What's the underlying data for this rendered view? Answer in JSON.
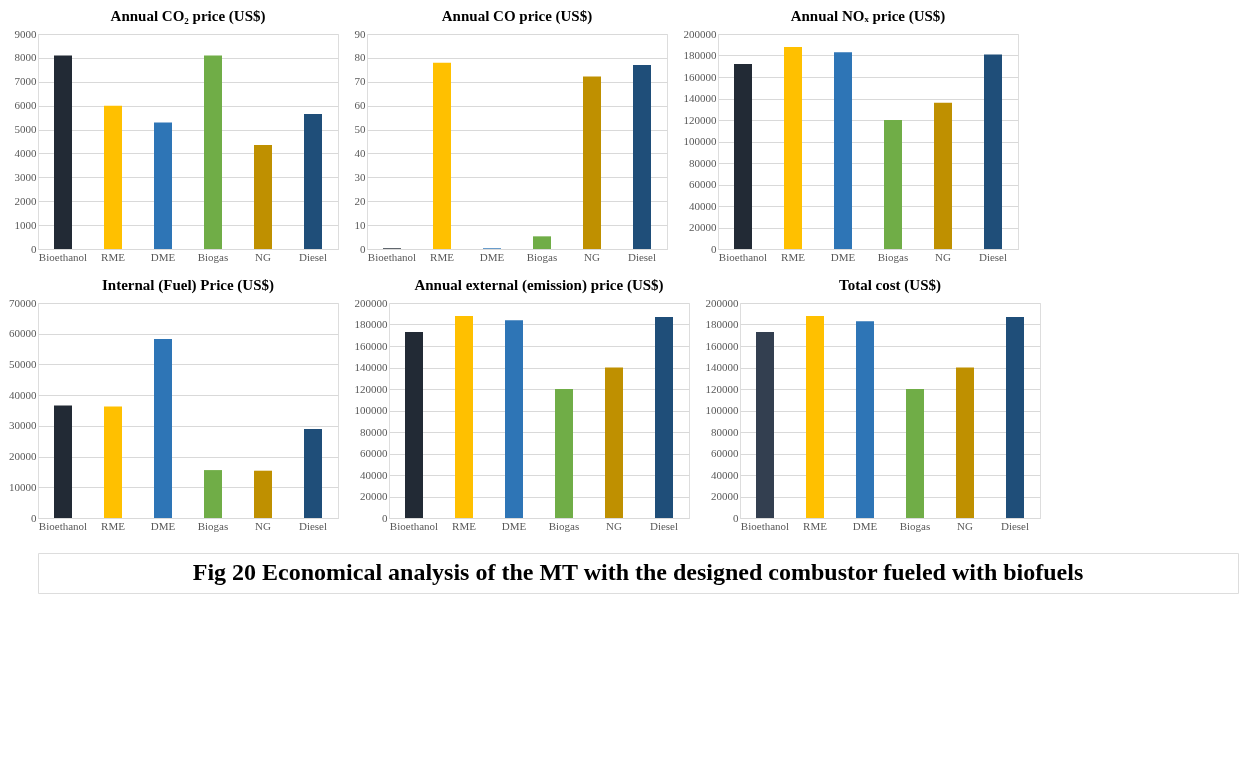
{
  "chart_data": [
    {
      "type": "bar",
      "title": "Annual CO₂ price (US$)",
      "categories": [
        "Bioethanol",
        "RME",
        "DME",
        "Biogas",
        "NG",
        "Diesel"
      ],
      "values": [
        8100,
        6000,
        5300,
        8100,
        4350,
        5650
      ],
      "colors": [
        "#222a35",
        "#ffc000",
        "#2e75b6",
        "#70ad47",
        "#bf9000",
        "#1f4e79"
      ],
      "ylim": [
        0,
        9000
      ],
      "yticks": [
        0,
        1000,
        2000,
        3000,
        4000,
        5000,
        6000,
        7000,
        8000,
        9000
      ],
      "grid": "y",
      "legend": false
    },
    {
      "type": "bar",
      "title": "Annual CO price (US$)",
      "categories": [
        "Bioethanol",
        "RME",
        "DME",
        "Biogas",
        "NG",
        "Diesel"
      ],
      "values": [
        0.3,
        78,
        0.3,
        5.3,
        72.2,
        77
      ],
      "colors": [
        "#222a35",
        "#ffc000",
        "#2e75b6",
        "#70ad47",
        "#bf9000",
        "#1f4e79"
      ],
      "ylim": [
        0,
        90
      ],
      "yticks": [
        0,
        10,
        20,
        30,
        40,
        50,
        60,
        70,
        80,
        90
      ],
      "grid": "y",
      "legend": false
    },
    {
      "type": "bar",
      "title": "Annual  NOₓ  price (US$)",
      "categories": [
        "Bioethanol",
        "RME",
        "DME",
        "Biogas",
        "NG",
        "Diesel"
      ],
      "values": [
        172000,
        188000,
        183000,
        120000,
        136000,
        181000
      ],
      "colors": [
        "#222a35",
        "#ffc000",
        "#2e75b6",
        "#70ad47",
        "#bf9000",
        "#1f4e79"
      ],
      "ylim": [
        0,
        200000
      ],
      "yticks": [
        0,
        20000,
        40000,
        60000,
        80000,
        100000,
        120000,
        140000,
        160000,
        180000,
        200000
      ],
      "grid": "y",
      "legend": false
    },
    {
      "type": "bar",
      "title": "Internal (Fuel)  Price (US$)",
      "categories": [
        "Bioethanol",
        "RME",
        "DME",
        "Biogas",
        "NG",
        "Diesel"
      ],
      "values": [
        36600,
        36300,
        58300,
        15600,
        15400,
        29000
      ],
      "colors": [
        "#222a35",
        "#ffc000",
        "#2e75b6",
        "#70ad47",
        "#bf9000",
        "#1f4e79"
      ],
      "ylim": [
        0,
        70000
      ],
      "yticks": [
        0,
        10000,
        20000,
        30000,
        40000,
        50000,
        60000,
        70000
      ],
      "grid": "y",
      "legend": false
    },
    {
      "type": "bar",
      "title": "Annual external (emission) price (US$)",
      "categories": [
        "Bioethanol",
        "RME",
        "DME",
        "Biogas",
        "NG",
        "Diesel"
      ],
      "values": [
        173000,
        188000,
        184000,
        120000,
        140000,
        187000
      ],
      "colors": [
        "#222a35",
        "#ffc000",
        "#2e75b6",
        "#70ad47",
        "#bf9000",
        "#1f4e79"
      ],
      "ylim": [
        0,
        200000
      ],
      "yticks": [
        0,
        20000,
        40000,
        60000,
        80000,
        100000,
        120000,
        140000,
        160000,
        180000,
        200000
      ],
      "grid": "y",
      "legend": false
    },
    {
      "type": "bar",
      "title": "Total cost (US$)",
      "categories": [
        "Bioethanol",
        "RME",
        "DME",
        "Biogas",
        "NG",
        "Diesel"
      ],
      "values": [
        173000,
        188000,
        183000,
        120000,
        140000,
        187000
      ],
      "colors": [
        "#333f50",
        "#ffc000",
        "#2e75b6",
        "#70ad47",
        "#bf9000",
        "#1f4e79"
      ],
      "ylim": [
        0,
        200000
      ],
      "yticks": [
        0,
        20000,
        40000,
        60000,
        80000,
        100000,
        120000,
        140000,
        160000,
        180000,
        200000
      ],
      "grid": "y",
      "legend": false,
      "annotations": [
        "Fig 20 Economical analysis of the MT with the designed combustor fueled with biofuels"
      ]
    }
  ]
}
